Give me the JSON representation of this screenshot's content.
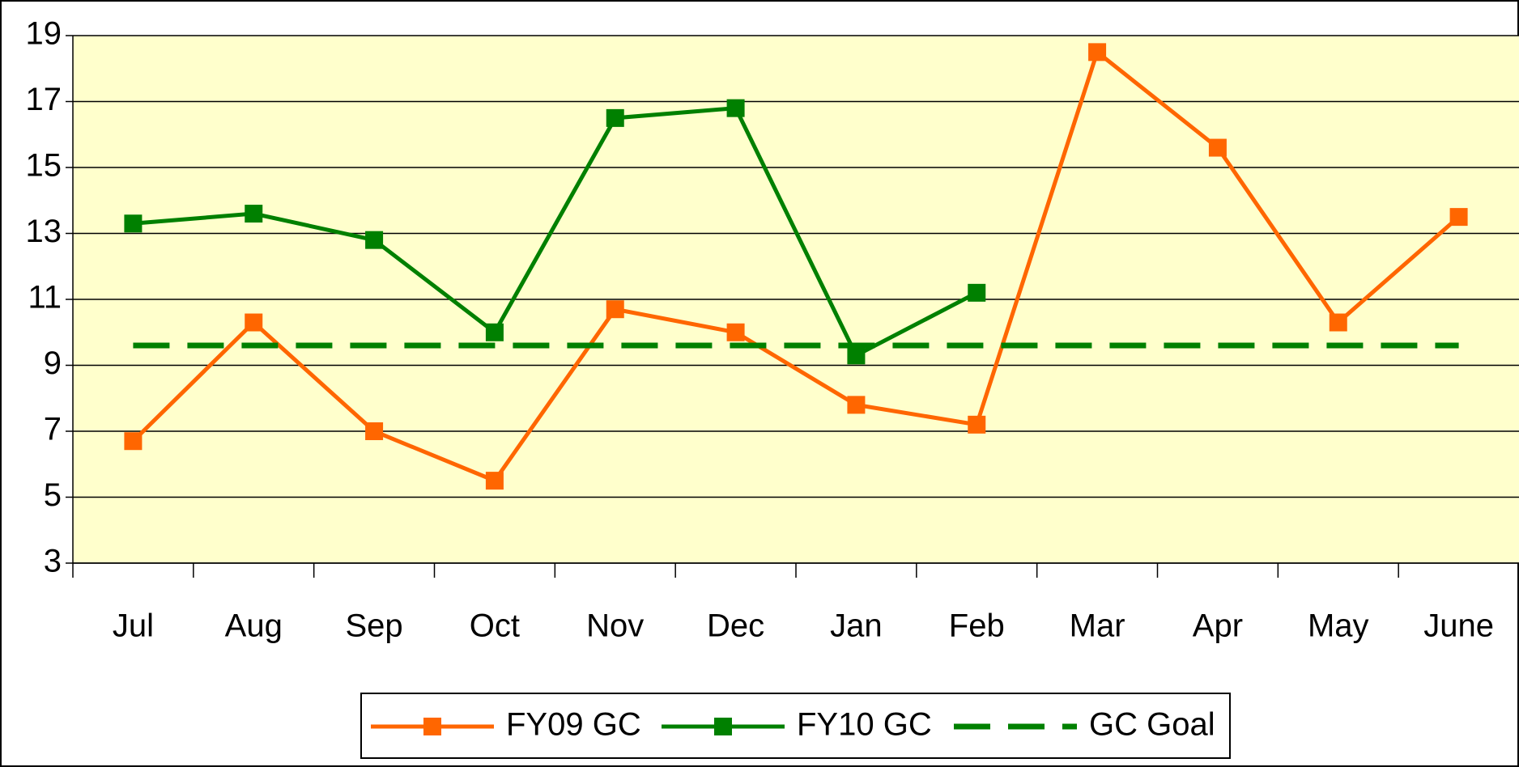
{
  "chart_data": {
    "type": "line",
    "categories": [
      "Jul",
      "Aug",
      "Sep",
      "Oct",
      "Nov",
      "Dec",
      "Jan",
      "Feb",
      "Mar",
      "Apr",
      "May",
      "June"
    ],
    "series": [
      {
        "name": "FY09 GC",
        "color": "#ff6600",
        "marker": "square",
        "values": [
          6.7,
          10.3,
          7.0,
          5.5,
          10.7,
          10.0,
          7.8,
          7.2,
          18.5,
          15.6,
          10.3,
          13.5
        ]
      },
      {
        "name": "FY10 GC",
        "color": "#008000",
        "marker": "square",
        "values": [
          13.3,
          13.6,
          12.8,
          10.0,
          16.5,
          16.8,
          9.3,
          11.2,
          null,
          null,
          null,
          null
        ]
      },
      {
        "name": "GC Goal",
        "color": "#008000",
        "dashed": true,
        "values": [
          9.6,
          9.6,
          9.6,
          9.6,
          9.6,
          9.6,
          9.6,
          9.6,
          9.6,
          9.6,
          9.6,
          9.6
        ]
      }
    ],
    "ylim": [
      3,
      19
    ],
    "yticks": [
      3,
      5,
      7,
      9,
      11,
      13,
      15,
      17,
      19
    ],
    "grid": true,
    "plot_background": "#ffffcc",
    "legend": "bottom"
  }
}
